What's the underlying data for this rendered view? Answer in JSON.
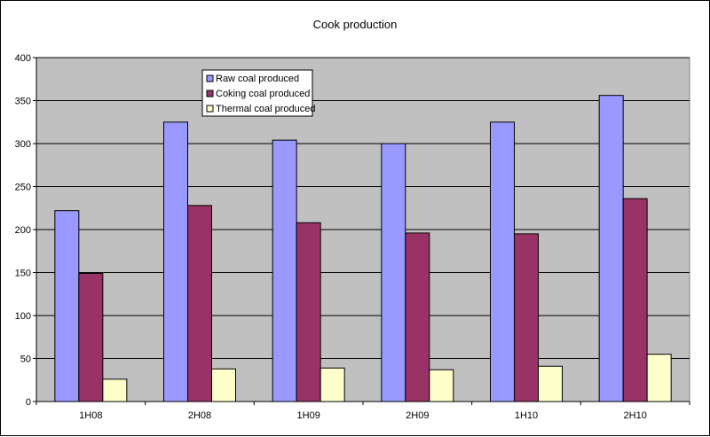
{
  "chart_data": {
    "type": "bar",
    "title": "Cook production",
    "xlabel": "",
    "ylabel": "",
    "categories": [
      "1H08",
      "2H08",
      "1H09",
      "2H09",
      "1H10",
      "2H10"
    ],
    "series": [
      {
        "name": "Raw coal produced",
        "values": [
          222,
          325,
          304,
          300,
          325,
          356
        ],
        "color": "#9999ff"
      },
      {
        "name": "Coking coal produced",
        "values": [
          149,
          228,
          208,
          196,
          195,
          236
        ],
        "color": "#993366"
      },
      {
        "name": "Thermal coal produced",
        "values": [
          26,
          38,
          39,
          37,
          41,
          55
        ],
        "color": "#ffffcc"
      }
    ],
    "ylim": [
      0,
      400
    ],
    "yticks": [
      0,
      50,
      100,
      150,
      200,
      250,
      300,
      350,
      400
    ],
    "grid": true,
    "legend_position": "top-left",
    "plot_background": "#c0c0c0"
  }
}
